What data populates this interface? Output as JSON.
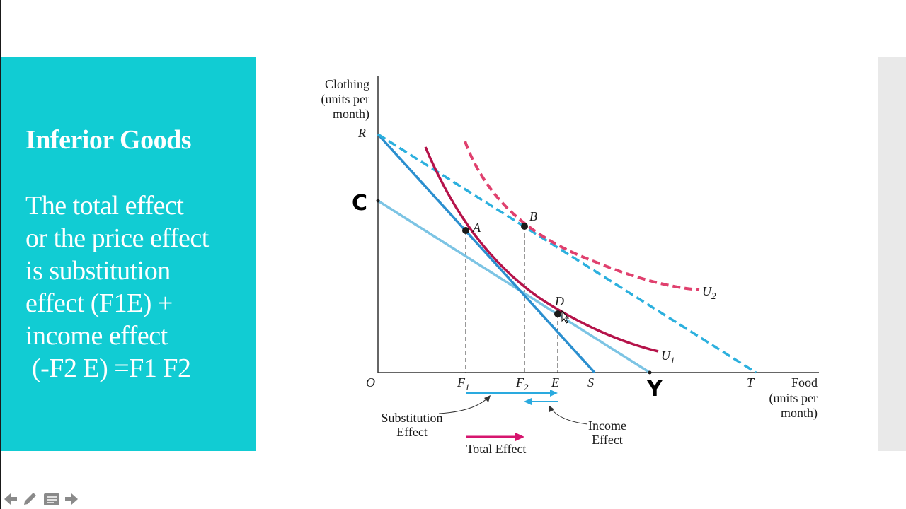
{
  "slide": {
    "heading": "Inferior Goods",
    "body_lines": [
      "The total effect",
      "or the price effect",
      "is substitution",
      "effect (F1E) +",
      "income effect",
      " (-F2 E) =F1 F2"
    ]
  },
  "diagram": {
    "y_axis_label": [
      "Clothing",
      "(units per",
      "month)"
    ],
    "x_axis_label": [
      "Food",
      "(units per",
      "month)"
    ],
    "origin_label": "O",
    "y_intercepts": {
      "R": "R",
      "C": "C"
    },
    "x_ticks": {
      "F1": "F",
      "F1_sub": "1",
      "F2": "F",
      "F2_sub": "2",
      "E": "E",
      "S": "S",
      "Y": "Y",
      "T": "T"
    },
    "points": {
      "A": "A",
      "B": "B",
      "D": "D"
    },
    "curves": {
      "U1": "U",
      "U1_sub": "1",
      "U2": "U",
      "U2_sub": "2"
    },
    "arrows": {
      "substitution": [
        "Substitution",
        "Effect"
      ],
      "income": [
        "Income",
        "Effect"
      ],
      "total": "Total Effect"
    },
    "colors": {
      "budget_dark": "#2b8fcf",
      "budget_light": "#7cc4e4",
      "budget_dashed": "#2cb0de",
      "indiff_u1": "#b5134a",
      "indiff_u2": "#e0406e",
      "total_arrow": "#d6156e",
      "effect_arrow": "#2aaadf"
    }
  },
  "nav_icons": [
    "arrow-left-icon",
    "pen-icon",
    "notes-icon",
    "arrow-right-icon"
  ]
}
